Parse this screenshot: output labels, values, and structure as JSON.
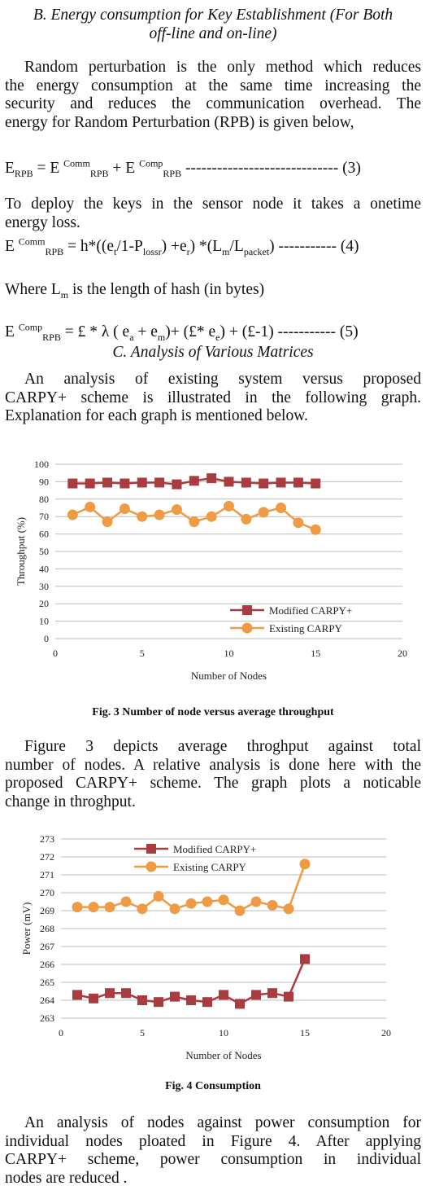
{
  "sections": {
    "b_heading_1": "B. Energy consumption for Key Establishment (For Both",
    "b_heading_2": "off-line and on-line)",
    "c_heading": "C. Analysis of Various Matrices"
  },
  "paragraphs": {
    "p1_l1": "Random perturbation is the only method which reduces",
    "p1_l2": "the energy consumption at the same time increasing the",
    "p1_l3": "security and reduces the communication overhead. The",
    "p1_l4": "energy for Random Perturbation (RPB) is given below,",
    "p2_l1": "To deploy the keys in the sensor node it takes a onetime",
    "p2_l2": "energy loss.",
    "p3": "Where L",
    "p3_sub": "m",
    "p3_rest": " is the length of hash (in bytes)",
    "p4_l1": "An analysis of existing system versus proposed",
    "p4_l2": "CARPY+ scheme is illustrated in the following graph.",
    "p4_l3": "Explanation for each graph is mentioned below.",
    "p5_l1": "Figure 3 depicts average throghput against  total",
    "p5_l2": "number of nodes. A relative analysis is done here with the",
    "p5_l3": "proposed CARPY+ scheme. The graph plots a noticable",
    "p5_l4": "change in throghput.",
    "p6_l1": "An analysis of nodes against power consumption for",
    "p6_l2": "individual nodes ploated in Figure 4. After applying",
    "p6_l3": "CARPY+ scheme, power consumption in individual",
    "p6_l4": "nodes are reduced ."
  },
  "equations": {
    "eq3": {
      "lhs": "E",
      "lhs_sub": "RPB",
      "eq": " = E ",
      "sup1": "Comm",
      "sub1": "RPB",
      "plus": " + E ",
      "sup2": "Comp",
      "sub2": "RPB",
      "tail": " ----------------------------- (3)"
    },
    "eq4": {
      "lhs": "E ",
      "lhs_sup": "Comm",
      "lhs_sub": "RPB",
      "t1": " = h*((e",
      "s1": "t",
      "t2": "/1-P",
      "s2": "lossr",
      "t3": ") +e",
      "s3": "r",
      "t4": ") *(L",
      "s4": "m",
      "t5": "/L",
      "s5": "packet",
      "tail": ") ----------- (4)"
    },
    "eq5": {
      "lhs": "E ",
      "lhs_sup": "Comp",
      "lhs_sub": "RPB",
      "t1": " = £ * λ ( e",
      "s1": "a",
      "t2": " + e",
      "s2": "m",
      "t3": ")+ (£* e",
      "s3": "e",
      "tail": ") + (£-1) ----------- (5)"
    }
  },
  "figures": {
    "fig3_caption": "Fig. 3 Number of node versus average throughput",
    "fig4_caption": "Fig. 4 Consumption"
  },
  "chart_data": [
    {
      "type": "line",
      "xlabel": "Number of Nodes",
      "ylabel": "Throughput (%)",
      "xlim": [
        0,
        20
      ],
      "ylim": [
        0,
        100
      ],
      "xticks": [
        0,
        5,
        10,
        15,
        20
      ],
      "yticks": [
        0,
        10,
        20,
        30,
        40,
        50,
        60,
        70,
        80,
        90,
        100
      ],
      "grid": true,
      "legend": "bottom-right",
      "x": [
        1,
        2,
        3,
        4,
        5,
        6,
        7,
        8,
        9,
        10,
        11,
        12,
        13,
        14,
        15
      ],
      "series": [
        {
          "name": "Modified CARPY+",
          "marker": "square",
          "color": "#a83c40",
          "values": [
            89,
            89,
            89.5,
            89,
            89.5,
            89.5,
            88.5,
            90.5,
            92,
            90,
            89.5,
            89,
            89.5,
            89.5,
            89
          ]
        },
        {
          "name": "Existing CARPY",
          "marker": "circle",
          "color": "#ef9b45",
          "values": [
            71,
            75.5,
            67,
            74.5,
            70,
            71,
            74,
            67,
            70,
            76,
            68.5,
            72.5,
            75,
            66.5,
            62.5
          ]
        }
      ]
    },
    {
      "type": "line",
      "xlabel": "Number of Nodes",
      "ylabel": "Power (mV)",
      "xlim": [
        0,
        20
      ],
      "ylim": [
        263,
        273
      ],
      "xticks": [
        0,
        5,
        10,
        15,
        20
      ],
      "yticks": [
        263,
        264,
        265,
        266,
        267,
        268,
        269,
        270,
        271,
        272,
        273
      ],
      "grid": true,
      "legend": "top-center",
      "x": [
        1,
        2,
        3,
        4,
        5,
        6,
        7,
        8,
        9,
        10,
        11,
        12,
        13,
        14,
        15
      ],
      "series": [
        {
          "name": "Modified CARPY+",
          "marker": "square",
          "color": "#a83c40",
          "values": [
            264.3,
            264.1,
            264.4,
            264.4,
            264.0,
            263.9,
            264.2,
            264.0,
            263.9,
            264.3,
            263.8,
            264.3,
            264.4,
            264.2,
            266.3
          ]
        },
        {
          "name": "Existing CARPY",
          "marker": "circle",
          "color": "#ef9b45",
          "values": [
            269.2,
            269.2,
            269.2,
            269.5,
            269.1,
            269.8,
            269.1,
            269.4,
            269.5,
            269.6,
            269.0,
            269.5,
            269.3,
            269.1,
            271.6
          ]
        }
      ]
    }
  ]
}
